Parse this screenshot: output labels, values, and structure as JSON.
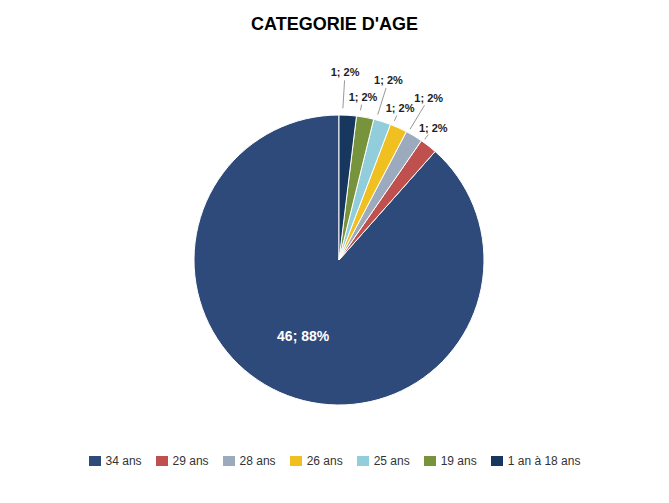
{
  "chart_data": {
    "type": "pie",
    "title": "CATEGORIE D'AGE",
    "categories": [
      "34 ans",
      "29 ans",
      "28 ans",
      "26 ans",
      "25 ans",
      "19 ans",
      "1 an à 18 ans"
    ],
    "values": [
      46,
      1,
      1,
      1,
      1,
      1,
      1
    ],
    "value_labels": [
      "46; 88%",
      "1; 2%",
      "1; 2%",
      "1; 2%",
      "1; 2%",
      "1; 2%",
      "1; 2%"
    ],
    "colors": [
      "#2E4A7A",
      "#C0504D",
      "#9BAABC",
      "#F0C020",
      "#92CDDC",
      "#77933C",
      "#17375E"
    ],
    "data_labels": true,
    "legend": "bottom"
  }
}
